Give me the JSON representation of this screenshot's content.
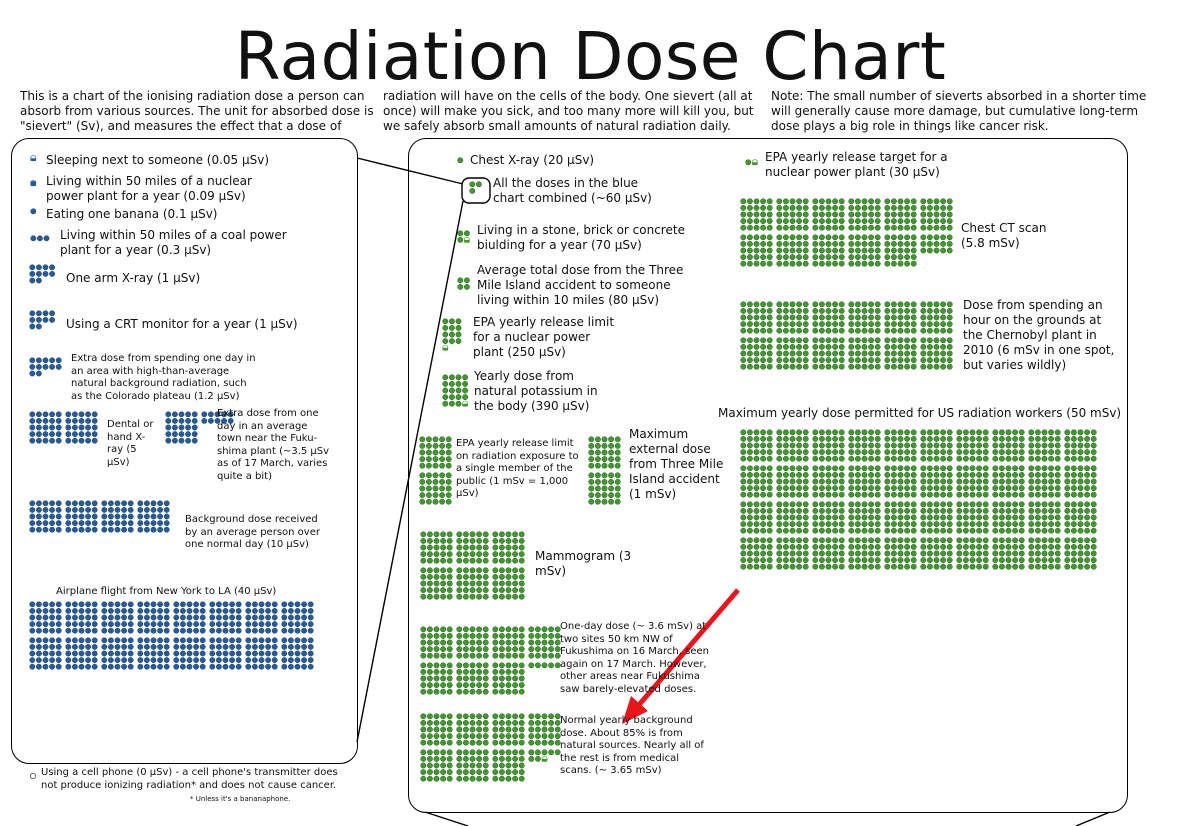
{
  "title": "Radiation Dose Chart",
  "intro": [
    "This is a chart of the ionising radiation dose a person can absorb from various sources. The unit for absorbed dose is \"sievert\" (Sv), and measures the effect that a dose of",
    "radiation will have on the cells of the body. One  sievert (all at once) will make you sick, and too many more will kill you, but we safely absorb small amounts of natural radiation daily.",
    "Note: The small number of sieverts absorbed in a shorter time will generally cause more damage, but cumulative long-term dose plays a big role in things like cancer risk."
  ],
  "colors": {
    "blue": "#2459a8",
    "green": "#3f9a2e",
    "arrow": "#e8151b"
  },
  "left_items": [
    {
      "id": "sleeping",
      "label": "Sleeping next to someone (0.05 µSv)",
      "dots": 0.5
    },
    {
      "id": "nuclear-plant",
      "label": "Living within 50 miles of a nuclear power plant for a year (0.09 µSv)",
      "dots": 0.9
    },
    {
      "id": "banana",
      "label": "Eating one banana (0.1 µSv)",
      "dots": 1
    },
    {
      "id": "coal-plant",
      "label": "Living within 50 miles of a coal power plant for a year (0.3 µSv)",
      "dots": 3
    },
    {
      "id": "arm-xray",
      "label": "One arm X-ray (1 µSv)",
      "dots": 10
    },
    {
      "id": "crt",
      "label": "Using a CRT monitor for a year (1 µSv)",
      "dots": 10
    },
    {
      "id": "colorado",
      "label": "Extra dose from spending one day in an area with high-than-average natural background radiation, such as the Colorado plateau (1.2 µSv)",
      "dots": 12
    },
    {
      "id": "dental",
      "label": "Dental or hand X-ray (5 µSv)",
      "dots": 50
    },
    {
      "id": "fukushima-town",
      "label": "Extra dose from one day in an average town near the Fuku-shima plant (~3.5 µSv as of 17 March, varies quite a bit)",
      "dots": 35
    },
    {
      "id": "background-day",
      "label": "Background dose received by an average person over one normal day (10 µSv)",
      "dots": 100
    },
    {
      "id": "airplane",
      "label": "Airplane flight from New York to LA (40 µSv)",
      "dots": 400
    }
  ],
  "cellphone": {
    "label": "Using a cell phone (0 µSv) - a cell phone's transmitter does not produce ionizing radiation* and does not cause cancer.",
    "dots": 0,
    "footnote": "* Unless it's a bananaphone."
  },
  "green_items": [
    {
      "id": "chest-xray",
      "label": "Chest X-ray (20 µSv)",
      "dots": 1
    },
    {
      "id": "blue-combined",
      "label": "All the doses in the blue chart combined (~60 µSv)",
      "dots": 3
    },
    {
      "id": "stone-building",
      "label": "Living in a stone, brick or concrete biulding for a year (70 µSv)",
      "dots": 3.5
    },
    {
      "id": "three-mile-total",
      "label": "Average total dose from the Three Mile Island accident to someone living within 10 miles (80 µSv)",
      "dots": 4
    },
    {
      "id": "epa-limit-plant",
      "label": "EPA yearly release limit for a nuclear power plant (250 µSv)",
      "dots": 12.5
    },
    {
      "id": "potassium",
      "label": "Yearly dose from natural potassium in the body (390 µSv)",
      "dots": 19.5
    },
    {
      "id": "epa-public",
      "label": "EPA yearly release limit on radiation exposure to a single member of the public (1 mSv = 1,000 µSv)",
      "dots": 50
    },
    {
      "id": "three-mile-max",
      "label": "Maximum external dose from Three Mile Island accident (1 mSv)",
      "dots": 50
    },
    {
      "id": "mammogram",
      "label": "Mammogram (3 mSv)",
      "dots": 150
    },
    {
      "id": "fukushima-sites",
      "label": "One-day dose (~ 3.6 mSv) at two sites 50 km NW of Fukushima on 16 March, seen again on 17 March. However, other areas near Fukushima saw barely-elevated doses.",
      "dots": 180
    },
    {
      "id": "normal-background",
      "label": "Normal yearly background dose. About 85% is from natural sources. Nearly all of the rest is from medical scans. (~ 3.65 mSv)",
      "dots": 182.5
    },
    {
      "id": "epa-target",
      "label": "EPA yearly release target for a nuclear power plant (30 µSv)",
      "dots": 1.5
    },
    {
      "id": "chest-ct",
      "label": "Chest CT scan (5.8 mSv)",
      "dots": 290
    },
    {
      "id": "chernobyl",
      "label": "Dose from spending an hour on the grounds at the Chernobyl plant in 2010 (6 mSv in one spot, but varies wildly)",
      "dots": 300
    },
    {
      "id": "us-workers",
      "label": "Maximum yearly dose permitted for US radiation workers (50 mSv)",
      "dots": 2500
    }
  ]
}
